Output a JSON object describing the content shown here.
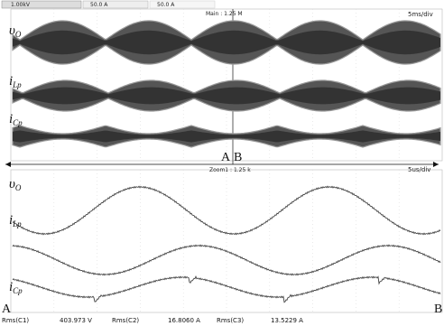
{
  "channels": [
    "1.00kV",
    "50.0 A",
    "50.0 A"
  ],
  "main": {
    "label": "Main : 1.25 M",
    "timebase": "5ms/div"
  },
  "zoom": {
    "label": "Zoom1 : 1.25 k",
    "timebase": "5us/div"
  },
  "top_labels": [
    {
      "symbol": "υ",
      "sub": "O"
    },
    {
      "symbol": "i",
      "sub": "Lp"
    },
    {
      "symbol": "i",
      "sub": "Cp"
    }
  ],
  "bottom_labels": [
    {
      "symbol": "υ",
      "sub": "O"
    },
    {
      "symbol": "i",
      "sub": "Lp"
    },
    {
      "symbol": "i",
      "sub": "Cp"
    }
  ],
  "markers": {
    "top_a": "A",
    "top_b": "B",
    "bottom_a": "A",
    "bottom_b": "B"
  },
  "measurements": [
    [
      "Rms(C1)",
      "403.973 V"
    ],
    [
      "Rms(C2)",
      "16.8060 A"
    ],
    [
      "Rms(C3)",
      "13.5229 A"
    ]
  ]
}
